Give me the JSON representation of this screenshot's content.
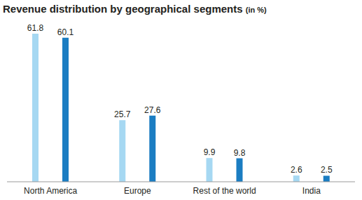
{
  "chart_data": {
    "type": "bar",
    "title": "Revenue distribution by geographical segments (in %)",
    "categories": [
      "North America",
      "Europe",
      "Rest of the world",
      "India"
    ],
    "series": [
      {
        "color": "#a6d8f2",
        "values": [
          61.8,
          25.7,
          9.9,
          2.6
        ]
      },
      {
        "color": "#1b7dc2",
        "values": [
          60.1,
          27.6,
          9.8,
          2.5
        ]
      }
    ],
    "data_labels": true,
    "tick_labels": "x",
    "grid": false
  }
}
